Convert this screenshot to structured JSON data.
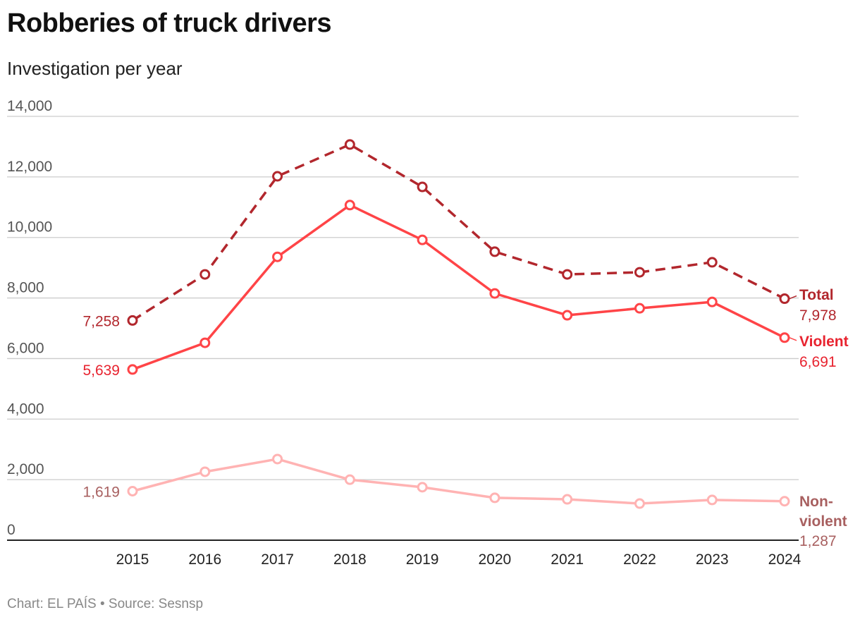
{
  "chart_data": {
    "type": "line",
    "title": "Robberies of truck drivers",
    "subtitle": "Investigation per year",
    "footer": "Chart: EL PAÍS • Source: Sesnsp",
    "x": [
      "2015",
      "2016",
      "2017",
      "2018",
      "2019",
      "2020",
      "2021",
      "2022",
      "2023",
      "2024"
    ],
    "ylim": [
      0,
      14000
    ],
    "yticks": [
      "0",
      "2,000",
      "4,000",
      "6,000",
      "8,000",
      "10,000",
      "12,000",
      "14,000"
    ],
    "grid": true,
    "series": [
      {
        "name": "Total",
        "color": "#b2272d",
        "dashed": true,
        "label_color": "#b2272d",
        "values": [
          7258,
          8780,
          12020,
          13070,
          11670,
          9530,
          8780,
          8850,
          9180,
          7978
        ],
        "start_label": "7,258",
        "end_label": "7,978"
      },
      {
        "name": "Violent",
        "color": "#ff4447",
        "dashed": false,
        "label_color": "#e8232f",
        "values": [
          5639,
          6520,
          9360,
          11070,
          9920,
          8150,
          7430,
          7660,
          7870,
          6691
        ],
        "start_label": "5,639",
        "end_label": "6,691"
      },
      {
        "name": "Non-violent",
        "name_lines": [
          "Non-",
          "violent"
        ],
        "color": "#ffb3b3",
        "dashed": false,
        "label_color": "#a86060",
        "values": [
          1619,
          2260,
          2680,
          2000,
          1750,
          1400,
          1350,
          1210,
          1330,
          1287
        ],
        "start_label": "1,619",
        "end_label": "1,287"
      }
    ]
  }
}
